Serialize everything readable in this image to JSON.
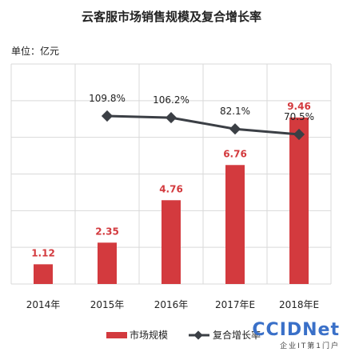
{
  "chart_data": {
    "type": "bar+line",
    "title": "云客服市场销售规模及复合增长率",
    "unit_label": "单位：亿元",
    "categories": [
      "2014年",
      "2015年",
      "2016年",
      "2017年E",
      "2018年E"
    ],
    "bar_series": {
      "name": "市场规模",
      "color": "#d33a3e",
      "values": [
        1.12,
        2.35,
        4.76,
        6.76,
        9.46
      ],
      "labels": [
        "1.12",
        "2.35",
        "4.76",
        "6.76",
        "9.46"
      ]
    },
    "line_series": {
      "name": "复合增长率",
      "color": "#3b3f45",
      "values": [
        null,
        109.8,
        106.2,
        82.1,
        70.5
      ],
      "labels": [
        "",
        "109.8%",
        "106.2%",
        "82.1%",
        "70.5%"
      ]
    },
    "grid": true,
    "legend_position": "bottom"
  },
  "watermark": {
    "main": "CCIDNet",
    "sub": "企业IT第1门户"
  }
}
